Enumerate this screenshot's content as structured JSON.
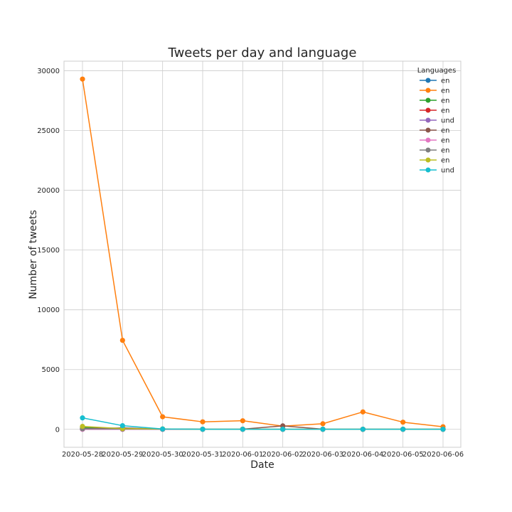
{
  "chart_data": {
    "type": "line",
    "title": "Tweets per day and language",
    "xlabel": "Date",
    "ylabel": "Number of tweets",
    "ylim": [
      -1500,
      30800
    ],
    "yticks": [
      0,
      5000,
      10000,
      15000,
      20000,
      25000,
      30000
    ],
    "ytick_labels": [
      "0",
      "5000",
      "10000",
      "15000",
      "20000",
      "25000",
      "30000"
    ],
    "categories": [
      "2020-05-28",
      "2020-05-29",
      "2020-05-30",
      "2020-05-31",
      "2020-06-01",
      "2020-06-02",
      "2020-06-03",
      "2020-06-04",
      "2020-06-05",
      "2020-06-06"
    ],
    "grid": true,
    "legend": {
      "title": "Languages",
      "placement": "top-right"
    },
    "markers": true,
    "series": [
      {
        "name": "en",
        "color": "#1f77b4",
        "values": [
          30,
          20,
          10,
          5,
          5,
          5,
          5,
          5,
          5,
          5
        ]
      },
      {
        "name": "en",
        "color": "#ff7f0e",
        "values": [
          29300,
          7450,
          1050,
          630,
          720,
          270,
          470,
          1460,
          600,
          220
        ]
      },
      {
        "name": "en",
        "color": "#2ca02c",
        "values": [
          150,
          50,
          20,
          10,
          10,
          10,
          10,
          10,
          10,
          10
        ]
      },
      {
        "name": "en",
        "color": "#d62728",
        "values": [
          10,
          5,
          5,
          5,
          5,
          5,
          5,
          5,
          5,
          5
        ]
      },
      {
        "name": "und",
        "color": "#9467bd",
        "values": [
          10,
          5,
          5,
          5,
          5,
          5,
          5,
          5,
          5,
          5
        ]
      },
      {
        "name": "en",
        "color": "#8c564b",
        "values": [
          60,
          120,
          20,
          10,
          20,
          290,
          20,
          10,
          10,
          10
        ]
      },
      {
        "name": "en",
        "color": "#e377c2",
        "values": [
          20,
          10,
          5,
          5,
          5,
          5,
          5,
          5,
          5,
          5
        ]
      },
      {
        "name": "en",
        "color": "#7f7f7f",
        "values": [
          50,
          30,
          10,
          5,
          5,
          5,
          5,
          5,
          5,
          5
        ]
      },
      {
        "name": "en",
        "color": "#bcbd22",
        "values": [
          250,
          60,
          40,
          10,
          10,
          10,
          10,
          10,
          10,
          10
        ]
      },
      {
        "name": "und",
        "color": "#17becf",
        "values": [
          960,
          310,
          30,
          10,
          10,
          10,
          10,
          10,
          10,
          10
        ]
      }
    ]
  }
}
